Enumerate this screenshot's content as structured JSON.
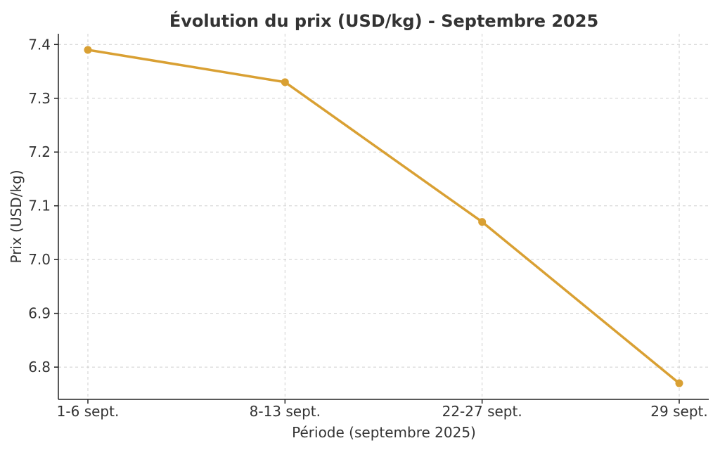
{
  "chart_data": {
    "type": "line",
    "title": "Évolution du prix (USD/kg) - Septembre 2025",
    "xlabel": "Période (septembre 2025)",
    "ylabel": "Prix (USD/kg)",
    "categories": [
      "1-6 sept.",
      "8-13 sept.",
      "22-27 sept.",
      "29 sept."
    ],
    "series": [
      {
        "values": [
          7.39,
          7.33,
          7.07,
          6.77
        ],
        "color": "#D9A033"
      }
    ],
    "ylim": [
      6.74,
      7.42
    ],
    "yticks": [
      6.8,
      6.9,
      7.0,
      7.1,
      7.2,
      7.3,
      7.4
    ],
    "ytick_labels": [
      "6.8",
      "6.9",
      "7.0",
      "7.1",
      "7.2",
      "7.3",
      "7.4"
    ],
    "grid": true,
    "legend": "none"
  }
}
